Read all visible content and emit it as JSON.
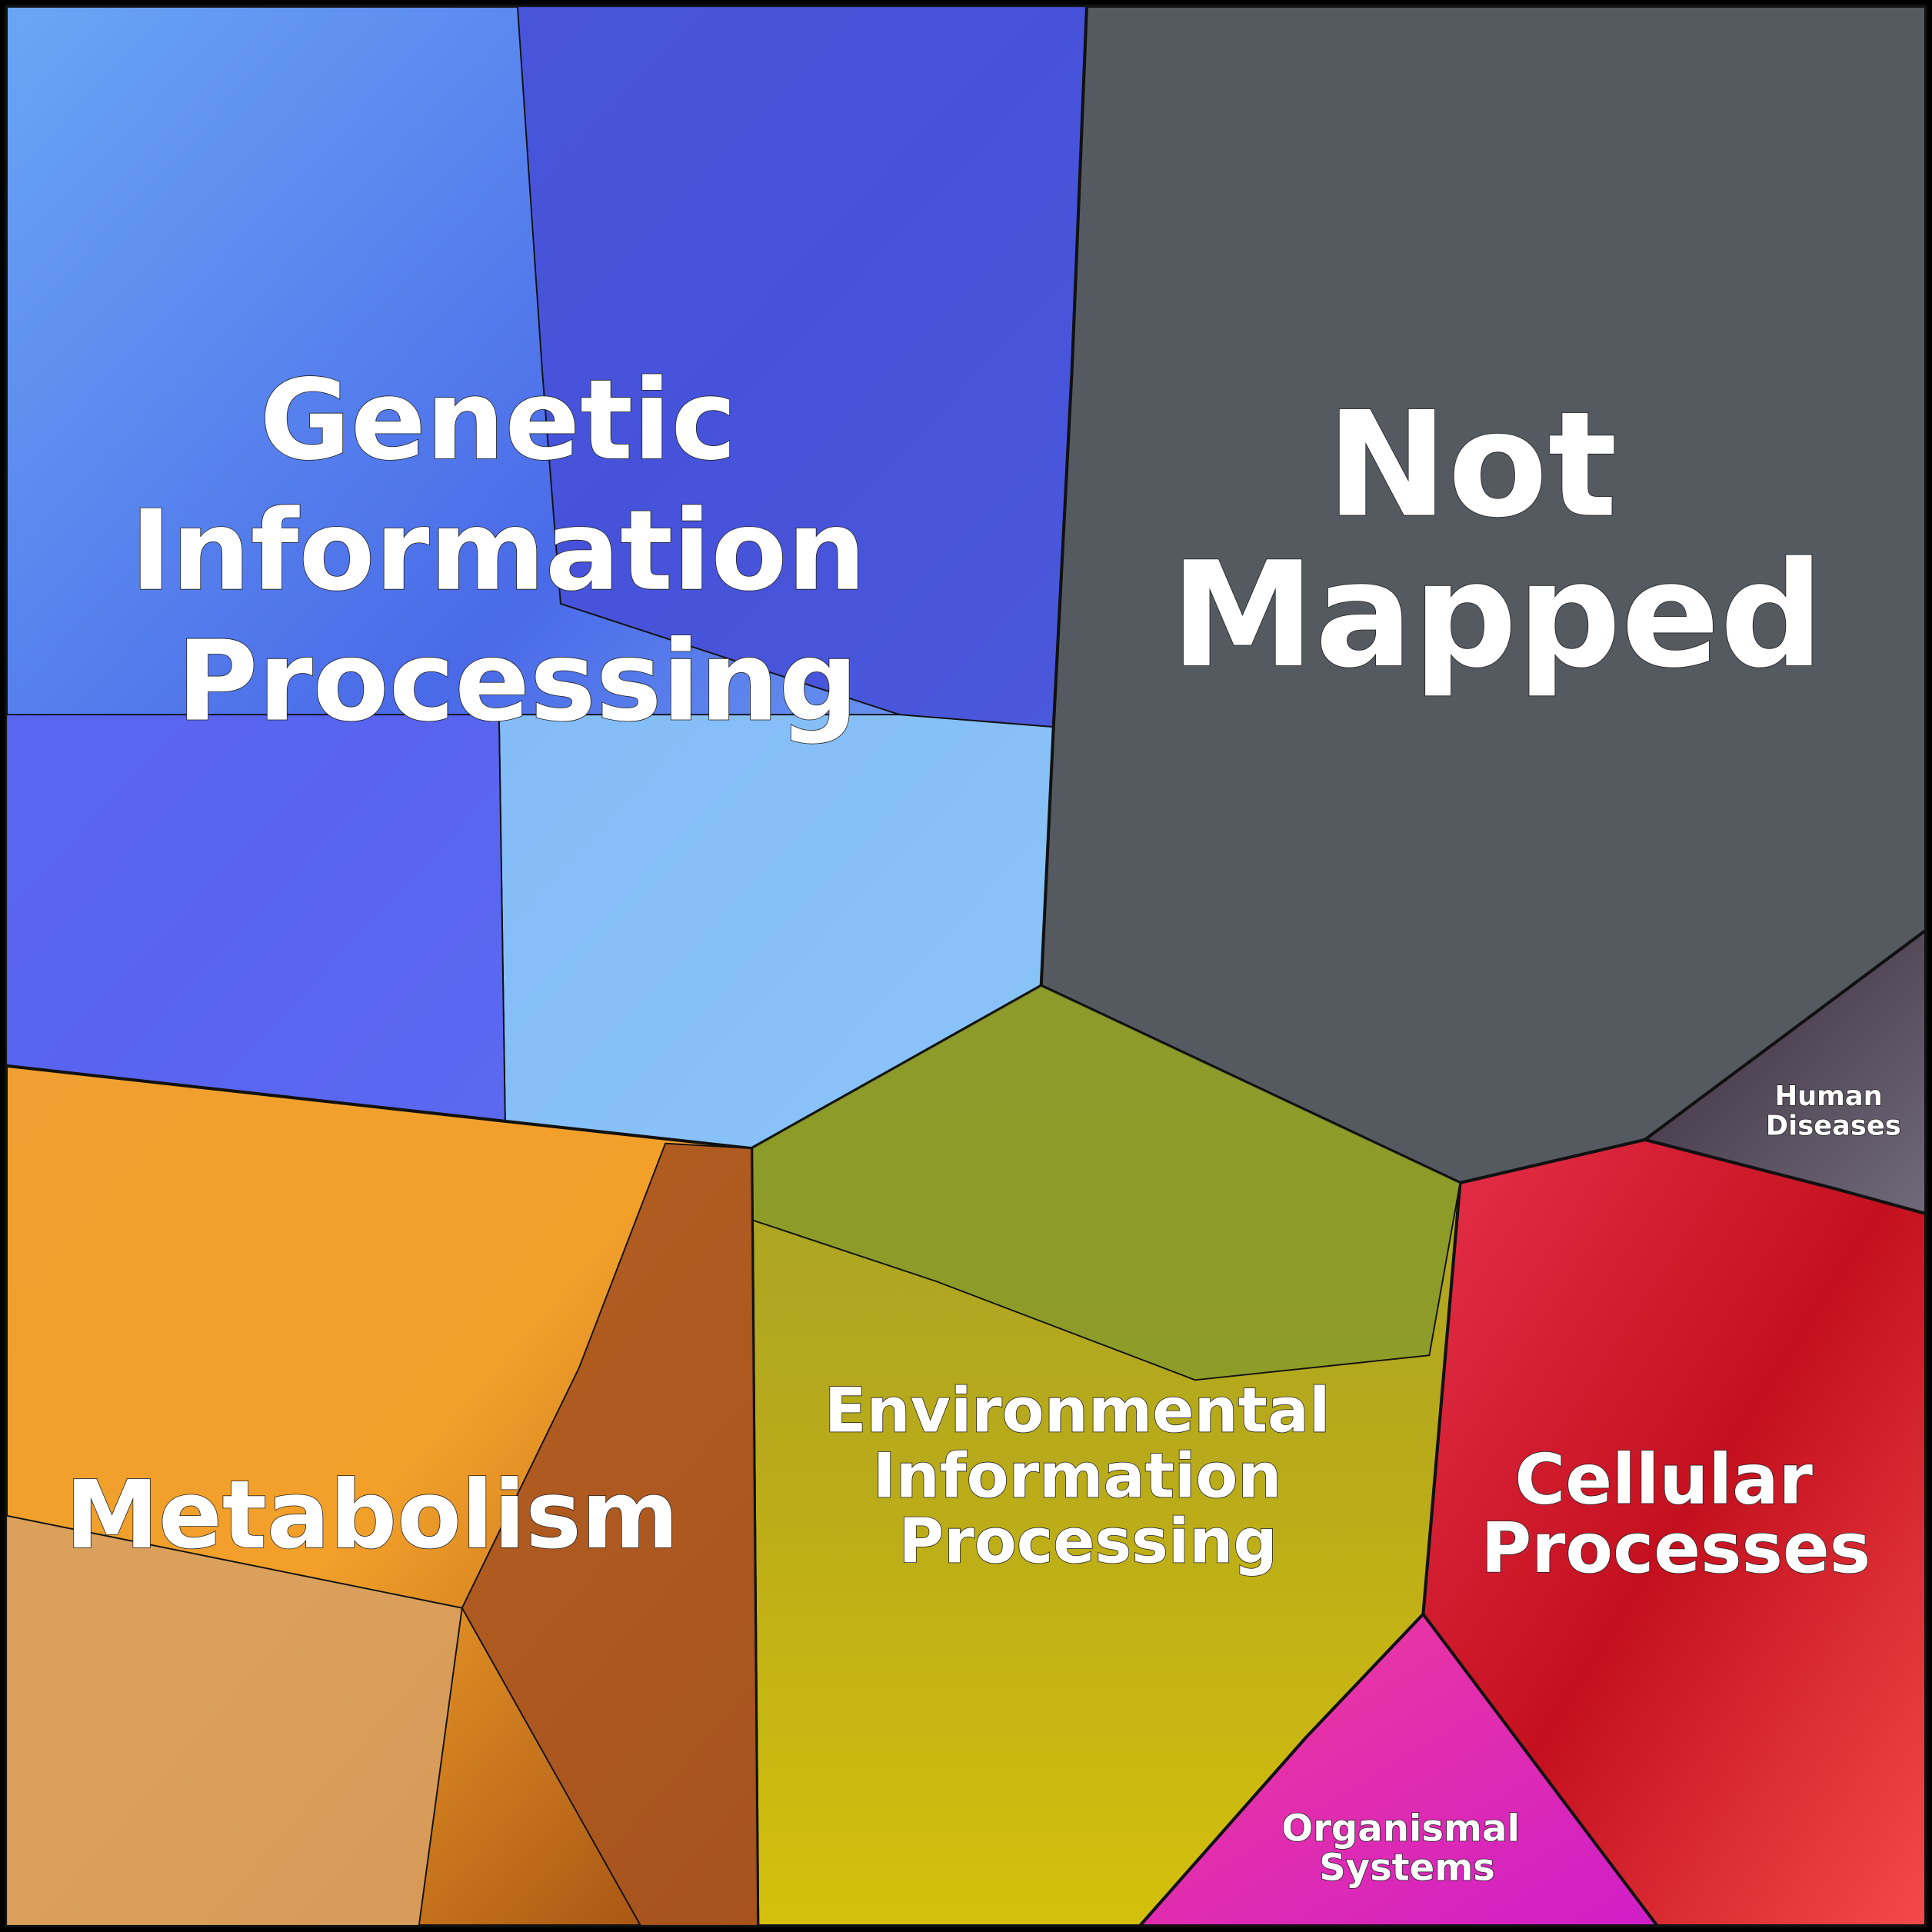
{
  "nodes": [
    {
      "lines": [
        "Genetic",
        "Information",
        "Processing"
      ]
    },
    {
      "lines": [
        "Not",
        "Mapped"
      ]
    },
    {
      "lines": [
        "Human",
        "Diseases"
      ]
    },
    {
      "lines": [
        "Cellular",
        "Processes"
      ]
    },
    {
      "lines": [
        "Organismal",
        "Systems"
      ]
    },
    {
      "lines": [
        "Environmental",
        "Information",
        "Processing"
      ]
    },
    {
      "lines": [
        "Metabolism"
      ]
    }
  ]
}
